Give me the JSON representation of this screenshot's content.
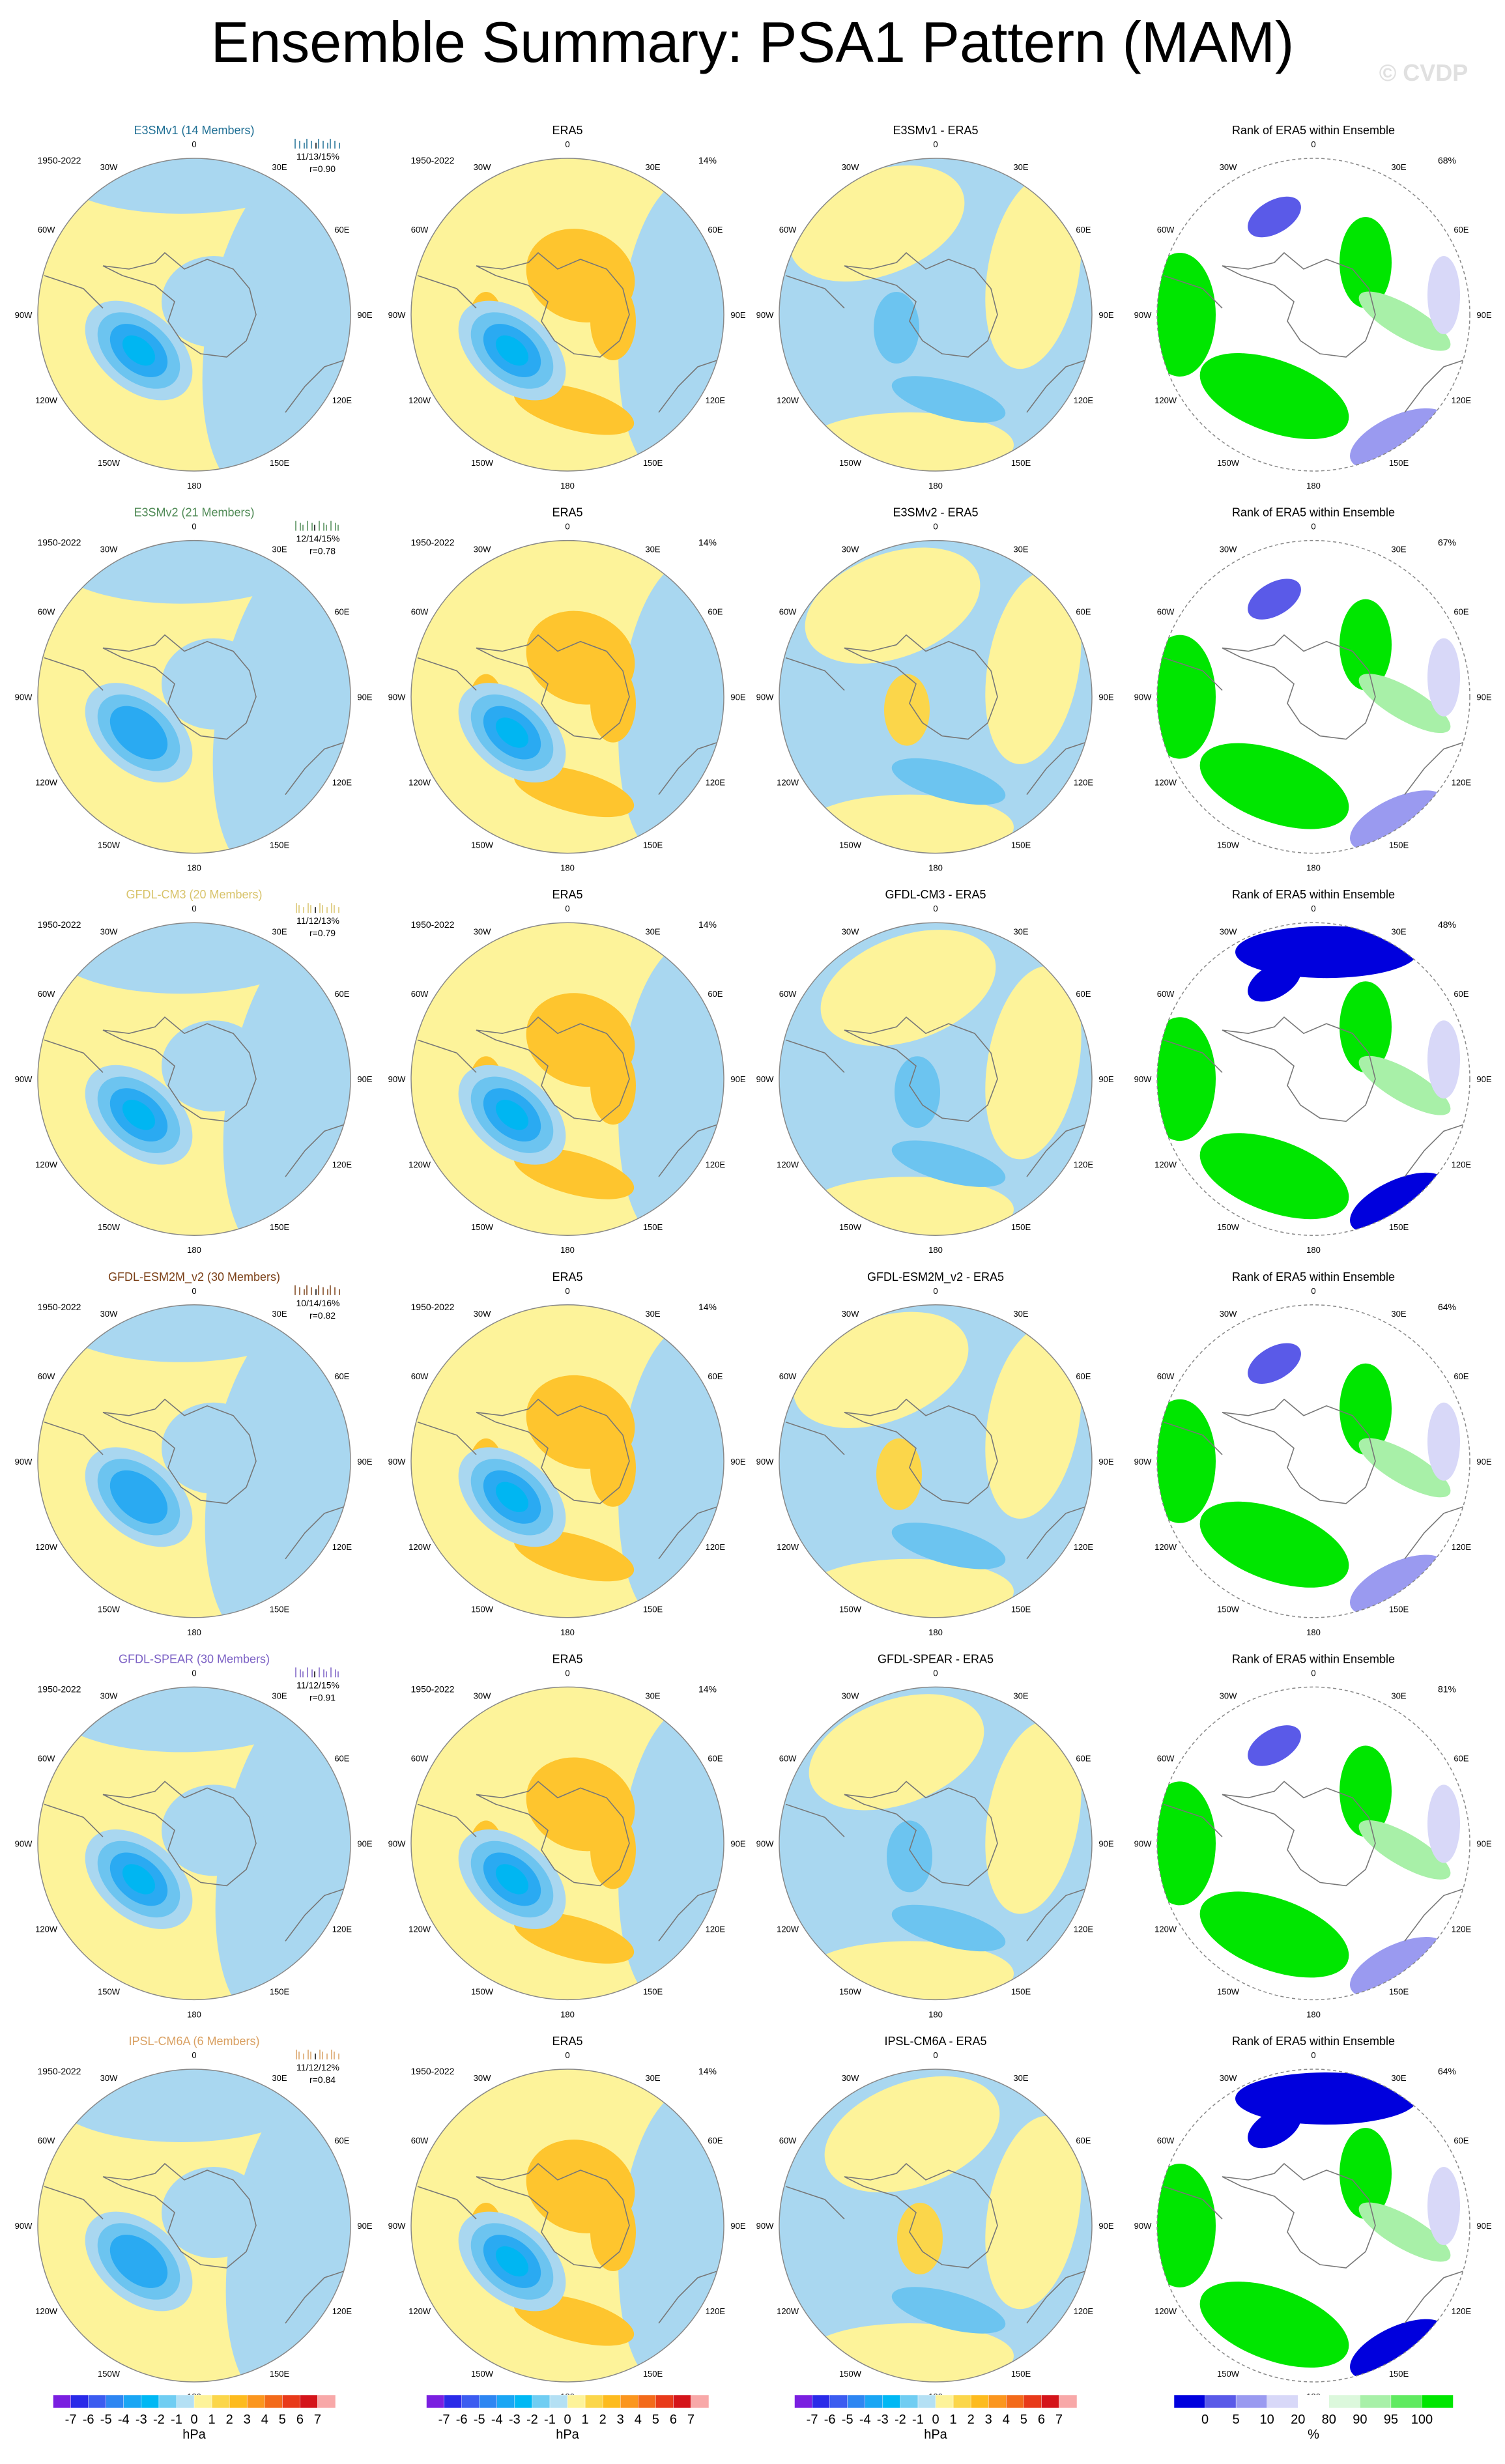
{
  "title": "Ensemble Summary: PSA1 Pattern (MAM)",
  "watermark": "© CVDP",
  "period": "1950-2022",
  "era5_title": "ERA5",
  "rank_title": "Rank of ERA5 within Ensemble",
  "lon_labels": [
    "0",
    "30E",
    "60E",
    "90E",
    "120E",
    "150E",
    "180",
    "150W",
    "120W",
    "90W",
    "60W",
    "30W"
  ],
  "rows": [
    {
      "model": "E3SMv1 (14 Members)",
      "model_color": "#1f6f94",
      "stats": "11/13/15%",
      "r": "r=0.90",
      "era5_pct": "14%",
      "diff_title": "E3SMv1 - ERA5",
      "rank_pct": "68%"
    },
    {
      "model": "E3SMv2 (21 Members)",
      "model_color": "#4f8a55",
      "stats": "12/14/15%",
      "r": "r=0.78",
      "era5_pct": "14%",
      "diff_title": "E3SMv2 - ERA5",
      "rank_pct": "67%"
    },
    {
      "model": "GFDL-CM3 (20 Members)",
      "model_color": "#d8c36a",
      "stats": "11/12/13%",
      "r": "r=0.79",
      "era5_pct": "14%",
      "diff_title": "GFDL-CM3 - ERA5",
      "rank_pct": "48%"
    },
    {
      "model": "GFDL-ESM2M_v2 (30 Members)",
      "model_color": "#7a3f16",
      "stats": "10/14/16%",
      "r": "r=0.82",
      "era5_pct": "14%",
      "diff_title": "GFDL-ESM2M_v2 - ERA5",
      "rank_pct": "64%"
    },
    {
      "model": "GFDL-SPEAR (30 Members)",
      "model_color": "#7a5fc4",
      "stats": "11/12/15%",
      "r": "r=0.91",
      "era5_pct": "14%",
      "diff_title": "GFDL-SPEAR - ERA5",
      "rank_pct": "81%"
    },
    {
      "model": "IPSL-CM6A (6 Members)",
      "model_color": "#d9a062",
      "stats": "11/12/12%",
      "r": "r=0.84",
      "era5_pct": "14%",
      "diff_title": "IPSL-CM6A - ERA5",
      "rank_pct": "64%"
    }
  ],
  "colorbars": {
    "hpa": {
      "unit": "hPa",
      "ticks": [
        -7,
        -6,
        -5,
        -4,
        -3,
        -2,
        -1,
        0,
        1,
        2,
        3,
        4,
        5,
        6,
        7
      ],
      "colors": [
        "#7a1fe0",
        "#2a2ae8",
        "#3c5cf0",
        "#2e86f2",
        "#1aa6f4",
        "#00b8f4",
        "#70cdf2",
        "#b4e0f4",
        "#fdf39a",
        "#fbd64a",
        "#fdbb1e",
        "#fb961e",
        "#f36a1a",
        "#e83a1a",
        "#d4141a",
        "#f8a8a8"
      ]
    },
    "rank": {
      "unit": "%",
      "ticks": [
        0,
        5,
        10,
        20,
        80,
        90,
        95,
        100
      ],
      "colors": [
        "#0000dd",
        "#5a5ae8",
        "#9a9af0",
        "#d8d8f8",
        "#ffffff",
        "#dcf8dc",
        "#a8f0a8",
        "#60ea60",
        "#00e600"
      ]
    }
  }
}
